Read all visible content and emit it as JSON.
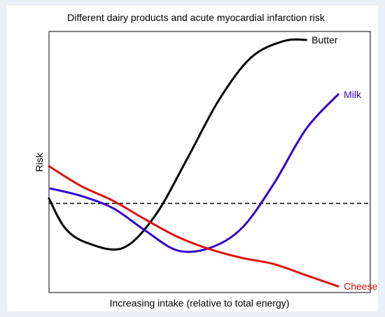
{
  "chart_data": {
    "type": "line",
    "title": "Different dairy products and acute myocardial infarction risk",
    "xlabel": "Increasing intake (relative to total energy)",
    "ylabel": "Risk",
    "xlim": [
      0,
      10
    ],
    "ylim": [
      0,
      10
    ],
    "reference_line": {
      "y": 3.4,
      "style": "dashed"
    },
    "series": [
      {
        "name": "Butter",
        "color": "#000000",
        "points": [
          [
            0.0,
            3.6
          ],
          [
            0.5,
            2.4
          ],
          [
            1.2,
            1.8
          ],
          [
            2.3,
            1.6
          ],
          [
            3.3,
            2.9
          ],
          [
            4.3,
            5.2
          ],
          [
            5.3,
            7.6
          ],
          [
            6.3,
            9.3
          ],
          [
            7.3,
            9.95
          ],
          [
            8.0,
            10.0
          ]
        ]
      },
      {
        "name": "Milk",
        "color": "#3300cc",
        "points": [
          [
            0.05,
            4.0
          ],
          [
            1.0,
            3.7
          ],
          [
            2.0,
            3.2
          ],
          [
            3.0,
            2.3
          ],
          [
            4.0,
            1.5
          ],
          [
            5.0,
            1.6
          ],
          [
            6.0,
            2.4
          ],
          [
            7.0,
            4.2
          ],
          [
            8.0,
            6.4
          ],
          [
            9.0,
            7.8
          ]
        ]
      },
      {
        "name": "Cheese",
        "color": "#dd1111",
        "points": [
          [
            0.0,
            4.9
          ],
          [
            1.0,
            4.1
          ],
          [
            2.0,
            3.5
          ],
          [
            3.0,
            2.75
          ],
          [
            4.0,
            2.05
          ],
          [
            5.0,
            1.55
          ],
          [
            6.0,
            1.2
          ],
          [
            7.0,
            0.95
          ],
          [
            8.0,
            0.5
          ],
          [
            9.0,
            0.05
          ]
        ]
      }
    ]
  }
}
